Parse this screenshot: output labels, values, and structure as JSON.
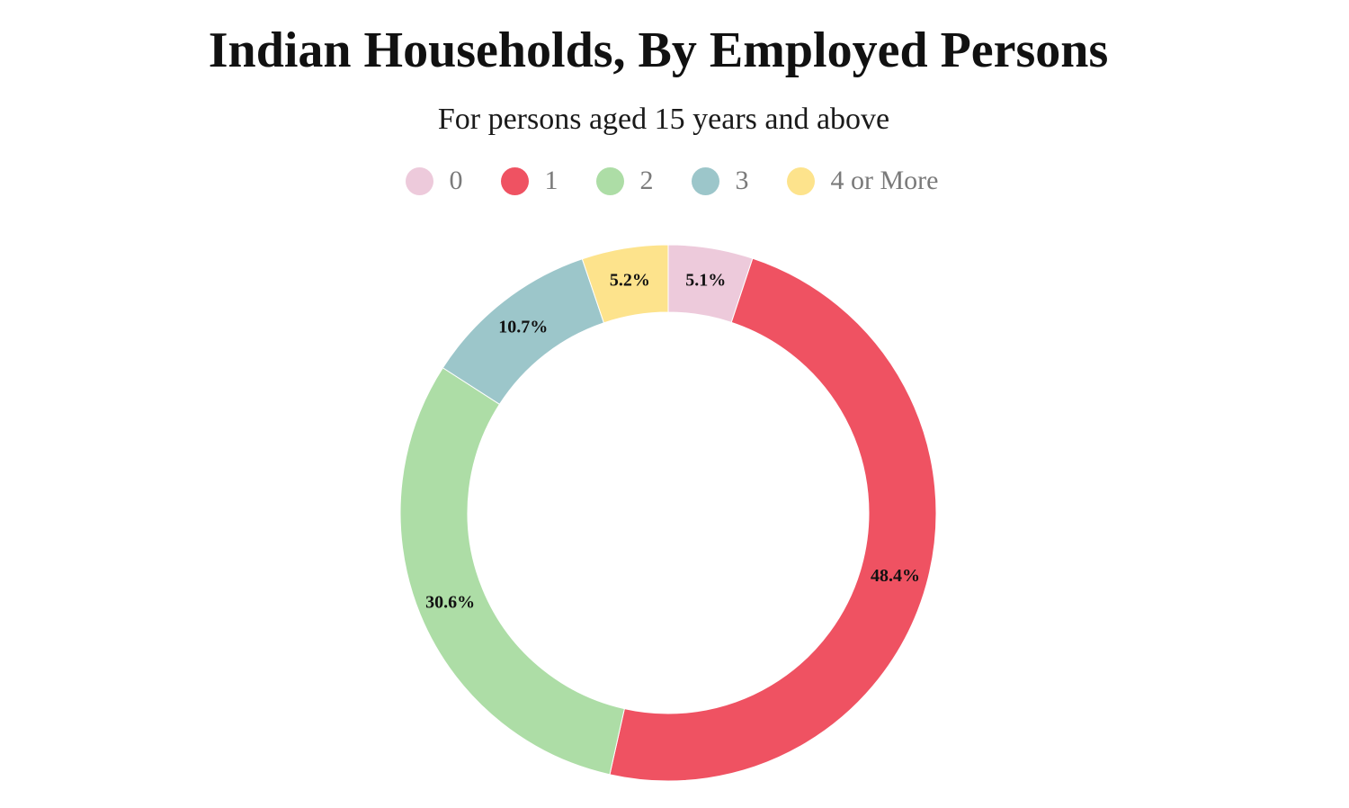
{
  "title": "Indian Households, By Employed Persons",
  "subtitle": "For persons aged 15 years and above",
  "chart_data": {
    "type": "pie",
    "variant": "donut",
    "title": "Indian Households, By Employed Persons",
    "subtitle": "For persons aged 15 years and above",
    "legend_position": "top-center",
    "start_angle_deg": 0,
    "direction": "clockwise",
    "slices": [
      {
        "label": "0",
        "value": 5.1,
        "value_label": "5.1%",
        "color": "#EDCADB"
      },
      {
        "label": "1",
        "value": 48.4,
        "value_label": "48.4%",
        "color": "#EF5262"
      },
      {
        "label": "2",
        "value": 30.6,
        "value_label": "30.6%",
        "color": "#ADDDA6"
      },
      {
        "label": "3",
        "value": 10.7,
        "value_label": "10.7%",
        "color": "#9CC6CA"
      },
      {
        "label": "4 or More",
        "value": 5.2,
        "value_label": "5.2%",
        "color": "#FDE38C"
      }
    ]
  }
}
